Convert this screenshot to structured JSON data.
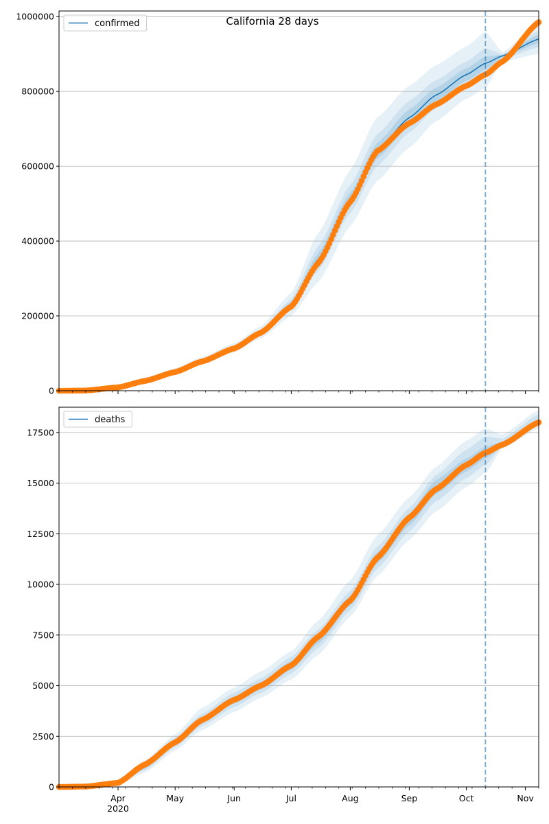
{
  "figure": {
    "title": "California 28 days"
  },
  "colors": {
    "model_line": "#1f77b4",
    "observed_points": "#ff7f0e",
    "band": "#1f77b4",
    "grid": "#b0b0b0",
    "forecast_marker": "#1f77b4"
  },
  "chart_data": [
    {
      "type": "line",
      "name": "confirmed-panel",
      "title": "California 28 days",
      "xlabel": "",
      "ylabel": "",
      "x_range": [
        "2020-03-01",
        "2020-11-08"
      ],
      "ylim": [
        0,
        1015000
      ],
      "y_ticks": [
        0,
        200000,
        400000,
        600000,
        800000,
        1000000
      ],
      "y_tick_labels": [
        "0",
        "200000",
        "400000",
        "600000",
        "800000",
        "1000000"
      ],
      "x_ticks": [
        "2020-04-01",
        "2020-05-01",
        "2020-06-01",
        "2020-07-01",
        "2020-08-01",
        "2020-09-01",
        "2020-10-01",
        "2020-11-01"
      ],
      "x_tick_labels": [
        "Apr",
        "May",
        "Jun",
        "Jul",
        "Aug",
        "Sep",
        "Oct",
        "Nov"
      ],
      "year_label": "",
      "grid": "horizontal",
      "legend": {
        "position": "top-left",
        "entries": [
          "confirmed"
        ]
      },
      "forecast_start": "2020-10-11",
      "model": {
        "name": "confirmed",
        "dates": [
          "2020-03-01",
          "2020-03-15",
          "2020-04-01",
          "2020-04-15",
          "2020-05-01",
          "2020-05-15",
          "2020-06-01",
          "2020-06-15",
          "2020-07-01",
          "2020-07-15",
          "2020-08-01",
          "2020-08-15",
          "2020-09-01",
          "2020-09-15",
          "2020-10-01",
          "2020-10-11",
          "2020-10-20",
          "2020-11-08"
        ],
        "values": [
          0,
          1000,
          10000,
          27000,
          52000,
          80000,
          115000,
          155000,
          230000,
          350000,
          510000,
          640000,
          730000,
          790000,
          845000,
          875000,
          895000,
          940000
        ],
        "bands": [
          {
            "lower": [
              0,
              0,
              7000,
              21000,
              44000,
              70000,
              103000,
              140000,
              200000,
              290000,
              440000,
              560000,
              650000,
              720000,
              780000,
              810000,
              880000,
              900000
            ],
            "upper": [
              1000,
              3000,
              14000,
              33000,
              60000,
              90000,
              127000,
              172000,
              262000,
              420000,
              590000,
              730000,
              815000,
              870000,
              920000,
              960000,
              905000,
              985000
            ]
          },
          {
            "lower": [
              0,
              300,
              8500,
              24000,
              48000,
              75000,
              109000,
              148000,
              215000,
              320000,
              475000,
              600000,
              690000,
              755000,
              812000,
              842000,
              887000,
              918000
            ],
            "upper": [
              500,
              1800,
              12000,
              30000,
              56000,
              85000,
              121000,
              163000,
              245000,
              385000,
              550000,
              685000,
              775000,
              830000,
              880000,
              915000,
              900000,
              962000
            ]
          },
          {
            "lower": [
              0,
              600,
              9300,
              25500,
              50000,
              77500,
              112000,
              151500,
              223000,
              335000,
              492000,
              620000,
              710000,
              772000,
              828000,
              858000,
              891000,
              929000
            ],
            "upper": [
              200,
              1400,
              11000,
              28500,
              54000,
              82500,
              118000,
              159000,
              237000,
              367000,
              530000,
              662000,
              752000,
              810000,
              862000,
              893000,
              898000,
              951000
            ]
          }
        ]
      },
      "observed": {
        "dates": [
          "2020-03-01",
          "2020-03-15",
          "2020-04-01",
          "2020-04-15",
          "2020-05-01",
          "2020-05-15",
          "2020-06-01",
          "2020-06-15",
          "2020-07-01",
          "2020-07-15",
          "2020-08-01",
          "2020-08-15",
          "2020-09-01",
          "2020-09-15",
          "2020-10-01",
          "2020-10-11",
          "2020-10-20",
          "2020-11-08"
        ],
        "values": [
          0,
          500,
          9000,
          26000,
          50000,
          78000,
          113000,
          155000,
          225000,
          340000,
          505000,
          640000,
          715000,
          765000,
          815000,
          845000,
          880000,
          985000
        ]
      }
    },
    {
      "type": "line",
      "name": "deaths-panel",
      "title": "",
      "xlabel": "",
      "ylabel": "",
      "x_range": [
        "2020-03-01",
        "2020-11-08"
      ],
      "ylim": [
        0,
        18750
      ],
      "y_ticks": [
        0,
        2500,
        5000,
        7500,
        10000,
        12500,
        15000,
        17500
      ],
      "y_tick_labels": [
        "0",
        "2500",
        "5000",
        "7500",
        "10000",
        "12500",
        "15000",
        "17500"
      ],
      "x_ticks": [
        "2020-04-01",
        "2020-05-01",
        "2020-06-01",
        "2020-07-01",
        "2020-08-01",
        "2020-09-01",
        "2020-10-01",
        "2020-11-01"
      ],
      "x_tick_labels": [
        "Apr",
        "May",
        "Jun",
        "Jul",
        "Aug",
        "Sep",
        "Oct",
        "Nov"
      ],
      "year_label": "2020",
      "grid": "horizontal",
      "legend": {
        "position": "top-left",
        "entries": [
          "deaths"
        ]
      },
      "forecast_start": "2020-10-11",
      "model": {
        "name": "deaths",
        "dates": [
          "2020-03-01",
          "2020-03-15",
          "2020-04-01",
          "2020-04-15",
          "2020-05-01",
          "2020-05-15",
          "2020-06-01",
          "2020-06-15",
          "2020-07-01",
          "2020-07-15",
          "2020-08-01",
          "2020-08-15",
          "2020-09-01",
          "2020-09-15",
          "2020-10-01",
          "2020-10-11",
          "2020-10-20",
          "2020-11-08"
        ],
        "values": [
          0,
          10,
          200,
          1000,
          2200,
          3300,
          4300,
          5000,
          6000,
          7300,
          9200,
          11300,
          13200,
          14800,
          15900,
          16500,
          16900,
          18000
        ],
        "bands": [
          {
            "lower": [
              0,
              0,
              100,
              700,
              1800,
              2800,
              3700,
              4400,
              5300,
              6500,
              8400,
              10400,
              12200,
              13600,
              14800,
              15500,
              16700,
              17700
            ],
            "upper": [
              30,
              60,
              300,
              1300,
              2600,
              3900,
              4900,
              5700,
              6700,
              8200,
              10200,
              12400,
              14300,
              15800,
              17100,
              17700,
              17400,
              18600
            ]
          },
          {
            "lower": [
              0,
              0,
              140,
              820,
              1960,
              3000,
              3940,
              4640,
              5580,
              6840,
              8720,
              10760,
              12620,
              14100,
              15250,
              15900,
              16800,
              17850
            ],
            "upper": [
              20,
              40,
              260,
              1180,
              2440,
              3600,
              4660,
              5360,
              6420,
              7760,
              9680,
              11840,
              13780,
              15400,
              16650,
              17300,
              17200,
              18400
            ]
          },
          {
            "lower": [
              0,
              5,
              170,
              900,
              2080,
              3150,
              4120,
              4820,
              5790,
              7070,
              8960,
              11030,
              12910,
              14450,
              15580,
              16200,
              16850,
              17930
            ],
            "upper": [
              15,
              25,
              230,
              1100,
              2320,
              3450,
              4480,
              5180,
              6210,
              7530,
              9440,
              11570,
              13490,
              15150,
              16220,
              16800,
              17050,
              18150
            ]
          }
        ]
      },
      "observed": {
        "dates": [
          "2020-03-01",
          "2020-03-15",
          "2020-04-01",
          "2020-04-15",
          "2020-05-01",
          "2020-05-15",
          "2020-06-01",
          "2020-06-15",
          "2020-07-01",
          "2020-07-15",
          "2020-08-01",
          "2020-08-15",
          "2020-09-01",
          "2020-09-15",
          "2020-10-01",
          "2020-10-11",
          "2020-10-20",
          "2020-11-08"
        ],
        "values": [
          0,
          20,
          200,
          1100,
          2200,
          3300,
          4300,
          5000,
          6000,
          7400,
          9200,
          11300,
          13300,
          14700,
          15900,
          16500,
          16900,
          18000
        ]
      }
    }
  ]
}
